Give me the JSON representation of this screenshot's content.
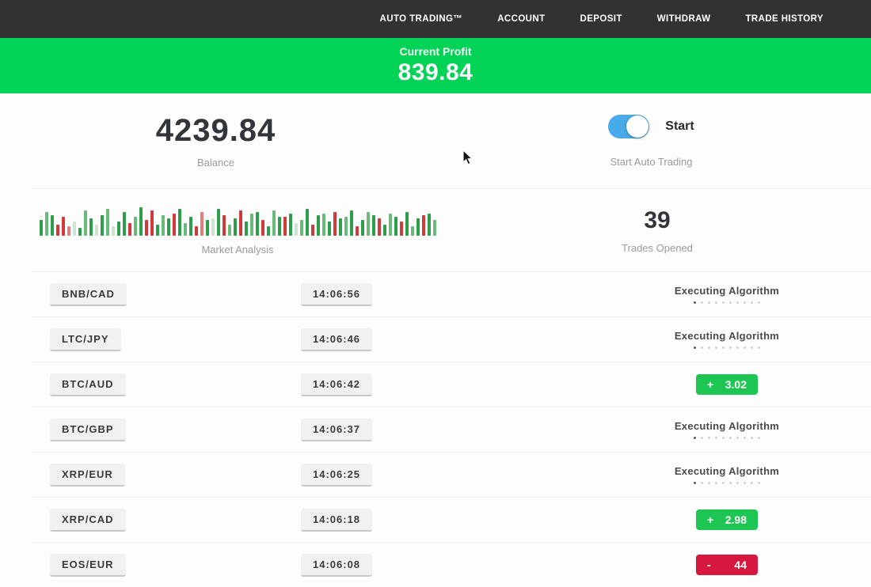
{
  "nav": {
    "items": [
      "AUTO TRADING™",
      "ACCOUNT",
      "DEPOSIT",
      "WITHDRAW",
      "TRADE HISTORY"
    ]
  },
  "profit_banner": {
    "label": "Current Profit",
    "value": "839.84",
    "bg_color": "#00d355"
  },
  "stats": {
    "balance": {
      "value": "4239.84",
      "label": "Balance"
    },
    "auto_trading": {
      "toggle_label": "Start",
      "caption": "Start Auto Trading",
      "toggle_on": true,
      "toggle_color": "#47abe9"
    },
    "market_analysis": {
      "label": "Market Analysis",
      "bars": [
        "g20",
        "G30",
        "g26",
        "r14",
        "r24",
        "R12",
        "p18",
        "g10",
        "G32",
        "g22",
        "p14",
        "g26",
        "G34",
        "p12",
        "g18",
        "g30",
        "r16",
        "G24",
        "g36",
        "r20",
        "r32",
        "g14",
        "G26",
        "g22",
        "r28",
        "g34",
        "G16",
        "g24",
        "r12",
        "R30",
        "g20",
        "p22",
        "g34",
        "r26",
        "G14",
        "g22",
        "r32",
        "g18",
        "G28",
        "g30",
        "r20",
        "g12",
        "G32",
        "g24",
        "r24",
        "g28",
        "p16",
        "G20",
        "g34",
        "r14",
        "g26",
        "G28",
        "g18",
        "r30",
        "g22",
        "G24",
        "g32",
        "r12",
        "g20",
        "G30",
        "g26",
        "r22",
        "g14",
        "G28",
        "g24",
        "r18",
        "g30",
        "G12",
        "g22",
        "r26",
        "g28",
        "G20"
      ]
    },
    "trades_opened": {
      "value": "39",
      "label": "Trades Opened"
    }
  },
  "status_defaults": {
    "executing_label": "Executing Algorithm",
    "dots_total": 10,
    "dots_active": 1
  },
  "trades": [
    {
      "pair": "BNB/CAD",
      "time": "14:06:56",
      "status_type": "executing"
    },
    {
      "pair": "LTC/JPY",
      "time": "14:06:46",
      "status_type": "executing"
    },
    {
      "pair": "BTC/AUD",
      "time": "14:06:42",
      "status_type": "profit",
      "sign": "+",
      "amount": "3.02"
    },
    {
      "pair": "BTC/GBP",
      "time": "14:06:37",
      "status_type": "executing"
    },
    {
      "pair": "XRP/EUR",
      "time": "14:06:25",
      "status_type": "executing"
    },
    {
      "pair": "XRP/CAD",
      "time": "14:06:18",
      "status_type": "profit",
      "sign": "+",
      "amount": "2.98"
    },
    {
      "pair": "EOS/EUR",
      "time": "14:06:08",
      "status_type": "loss",
      "sign": "-",
      "amount": "44"
    }
  ],
  "colors": {
    "nav_bg": "#333134",
    "banner_green": "#00d355",
    "profit_badge": "#1dc653",
    "loss_badge": "#d6173f",
    "toggle_blue": "#47abe9"
  }
}
